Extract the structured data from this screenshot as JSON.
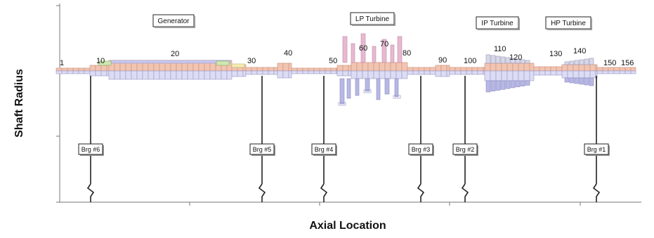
{
  "axes": {
    "y_title": "Shaft Radius",
    "x_title": "Axial Location"
  },
  "node_labels": [
    "1",
    "10",
    "20",
    "30",
    "40",
    "50",
    "60",
    "70",
    "80",
    "90",
    "100",
    "110",
    "120",
    "130",
    "140",
    "150",
    "156"
  ],
  "sections": [
    "Generator",
    "LP Turbine",
    "IP Turbine",
    "HP Turbine"
  ],
  "bearings": [
    "Brg #6",
    "Brg #5",
    "Brg #4",
    "Brg #3",
    "Brg #2",
    "Brg #1"
  ],
  "colors": {
    "shaft_upper": "#f2c4b2",
    "shaft_upper_edge": "#c98f7a",
    "shaft_lower": "#dcdcf4",
    "shaft_lower_edge": "#9a9ac8",
    "blade_upper": "#e8b8d0",
    "blade_lower": "#b8b8e6",
    "generator_band": "#c8c8f0",
    "accent_green": "#cfe8b0",
    "accent_yellow": "#f4ecb0",
    "line": "#222222",
    "axis": "#777777"
  }
}
